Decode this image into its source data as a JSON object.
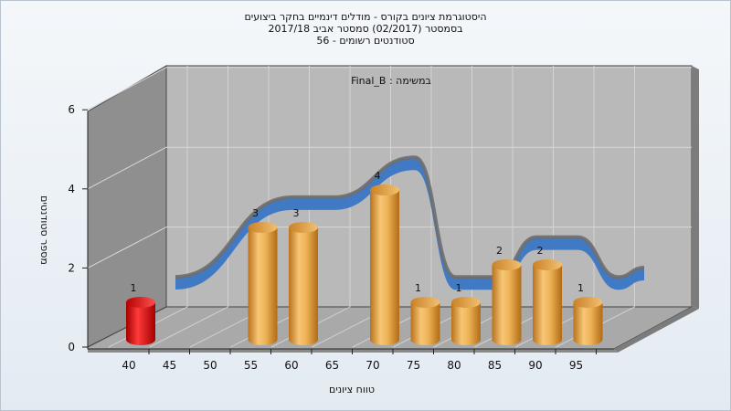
{
  "chart_data": {
    "type": "bar",
    "title_lines": [
      "היסטוגרמת ציונים בקורס - מודלים דינמיים בחקר ביצועים",
      "בסמסטר  (02/2017)  סמסטר אביב 2017/18",
      "סטודנטים רשומים - 56"
    ],
    "subtitle": "Final_B : במשימה",
    "xlabel": "טווח ציונים",
    "ylabel": "מספר סטודנטים",
    "x_ticks": [
      "40",
      "45",
      "50",
      "55",
      "60",
      "65",
      "70",
      "75",
      "80",
      "85",
      "90",
      "95"
    ],
    "y_ticks": [
      "0",
      "2",
      "4",
      "6"
    ],
    "ylim": [
      0,
      6
    ],
    "categories": [
      "40",
      "55",
      "60",
      "70",
      "75",
      "80",
      "85",
      "90",
      "95"
    ],
    "values": [
      1,
      3,
      3,
      4,
      1,
      1,
      2,
      2,
      1
    ],
    "bar_colors": [
      "#dd1111",
      "#e8a23a",
      "#e8a23a",
      "#e8a23a",
      "#e8a23a",
      "#e8a23a",
      "#e8a23a",
      "#e8a23a",
      "#e8a23a"
    ],
    "curve_colors": {
      "front": "#3a76c4",
      "back": "#6e6e6e"
    },
    "grid": true
  }
}
